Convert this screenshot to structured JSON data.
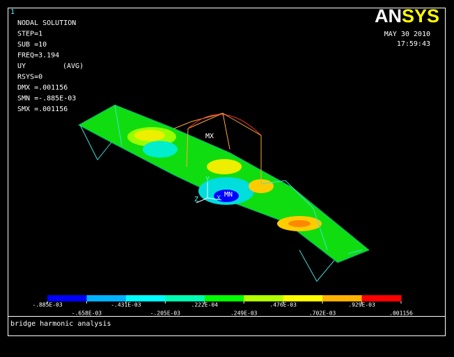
{
  "window_number": "1",
  "info": [
    "NODAL SOLUTION",
    "STEP=1",
    "SUB =10",
    "FREQ=3.194",
    "UY",
    "RSYS=0",
    "DMX =.001156",
    "SMN =-.885E-03",
    "SMX =.001156"
  ],
  "info_avg": "(AVG)",
  "logo": {
    "an": "AN",
    "sys": "SYS"
  },
  "date": "MAY 30 2010",
  "time": "17:59:43",
  "markers": {
    "max": "MX",
    "min": "MN"
  },
  "axes": {
    "y": "Y",
    "z": "Z",
    "x": "X"
  },
  "legend": {
    "colors": [
      "#0000ff",
      "#00b2ff",
      "#00ffff",
      "#00ffb2",
      "#00ff00",
      "#b2ff00",
      "#ffff00",
      "#ffb200",
      "#ff0000"
    ],
    "labels": [
      "-.885E-03",
      "-.658E-03",
      "-.431E-03",
      "-.205E-03",
      ".222E-04",
      ".249E-03",
      ".476E-03",
      ".702E-03",
      ".929E-03",
      ".001156"
    ]
  },
  "footer": "bridge harmonic analysis"
}
